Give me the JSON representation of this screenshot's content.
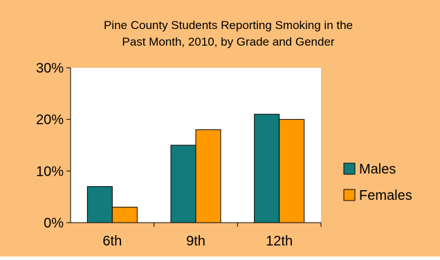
{
  "colors": {
    "background": "#fbbf7a",
    "plot_area": "#ffffff",
    "bar_outline": "#000000",
    "males": "#127b7b",
    "females": "#ff9900",
    "text": "#000000"
  },
  "chart_data": {
    "type": "bar",
    "title": "Pine County Students Reporting Smoking in the Past Month, 2010, by Grade and Gender",
    "title_lines": [
      "Pine County Students Reporting Smoking in the",
      "Past Month, 2010, by Grade and Gender"
    ],
    "categories": [
      "6th",
      "9th",
      "12th"
    ],
    "series": [
      {
        "name": "Males",
        "values": [
          7,
          15,
          21
        ]
      },
      {
        "name": "Females",
        "values": [
          3,
          18,
          20
        ]
      }
    ],
    "ylim": [
      0,
      30
    ],
    "yticks": [
      0,
      10,
      20,
      30
    ],
    "ytick_labels": [
      "0%",
      "10%",
      "20%",
      "30%"
    ],
    "unit": "%",
    "grid": false,
    "legend": "right"
  }
}
